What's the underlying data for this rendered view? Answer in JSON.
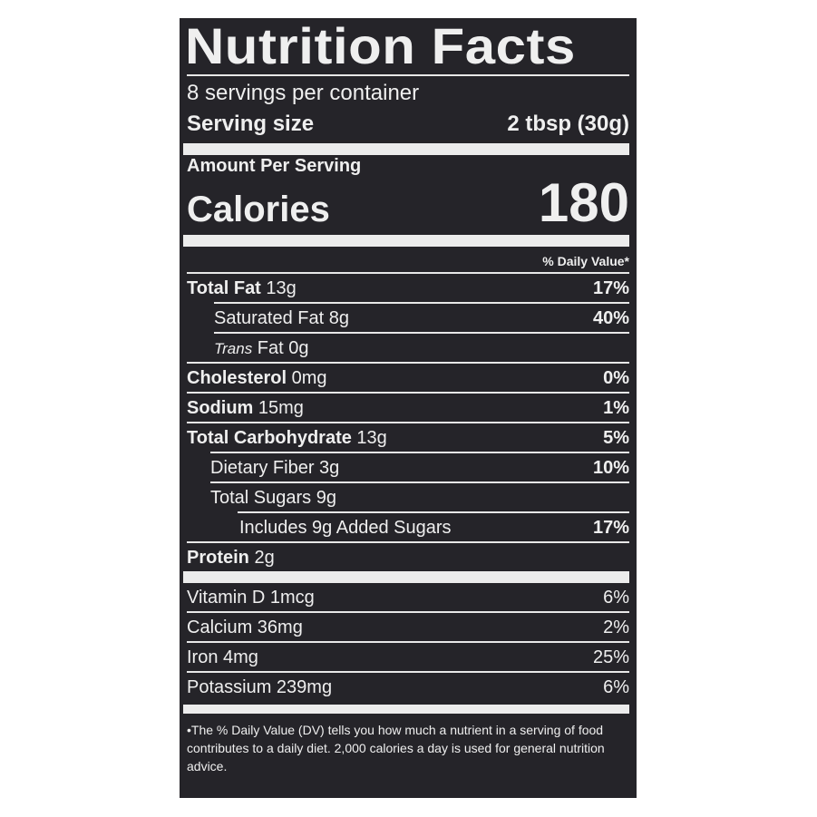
{
  "title": "Nutrition Facts",
  "servings_per_container": "8 servings per container",
  "serving_size": {
    "label": "Serving size",
    "value": "2 tbsp (30g)"
  },
  "amount_per_serving": "Amount Per Serving",
  "calories": {
    "label": "Calories",
    "value": "180"
  },
  "daily_value_header": "% Daily Value*",
  "nutrients": [
    {
      "name": "Total Fat",
      "amount": " 13g",
      "dv": "17%"
    },
    {
      "name": "Saturated Fat 8g",
      "amount": "",
      "dv": "40%"
    },
    {
      "name": "Trans",
      "amount": " Fat 0g",
      "dv": ""
    },
    {
      "name": "Cholesterol",
      "amount": " 0mg",
      "dv": "0%"
    },
    {
      "name": "Sodium",
      "amount": " 15mg",
      "dv": "1%"
    },
    {
      "name": "Total Carbohydrate",
      "amount": " 13g",
      "dv": "5%"
    },
    {
      "name": "Dietary Fiber 3g",
      "amount": "",
      "dv": "10%"
    },
    {
      "name": "Total Sugars 9g",
      "amount": "",
      "dv": ""
    },
    {
      "name": "Includes 9g Added Sugars",
      "amount": "",
      "dv": "17%"
    },
    {
      "name": "Protein",
      "amount": " 2g",
      "dv": ""
    }
  ],
  "vitamins": [
    {
      "name": "Vitamin D 1mcg",
      "dv": "6%"
    },
    {
      "name": "Calcium 36mg",
      "dv": "2%"
    },
    {
      "name": "Iron 4mg",
      "dv": "25%"
    },
    {
      "name": "Potassium 239mg",
      "dv": "6%"
    }
  ],
  "footnote": "•The % Daily Value (DV) tells you how much a nutrient in a serving of food contributes to a daily diet. 2,000 calories a day is used for general nutrition advice."
}
